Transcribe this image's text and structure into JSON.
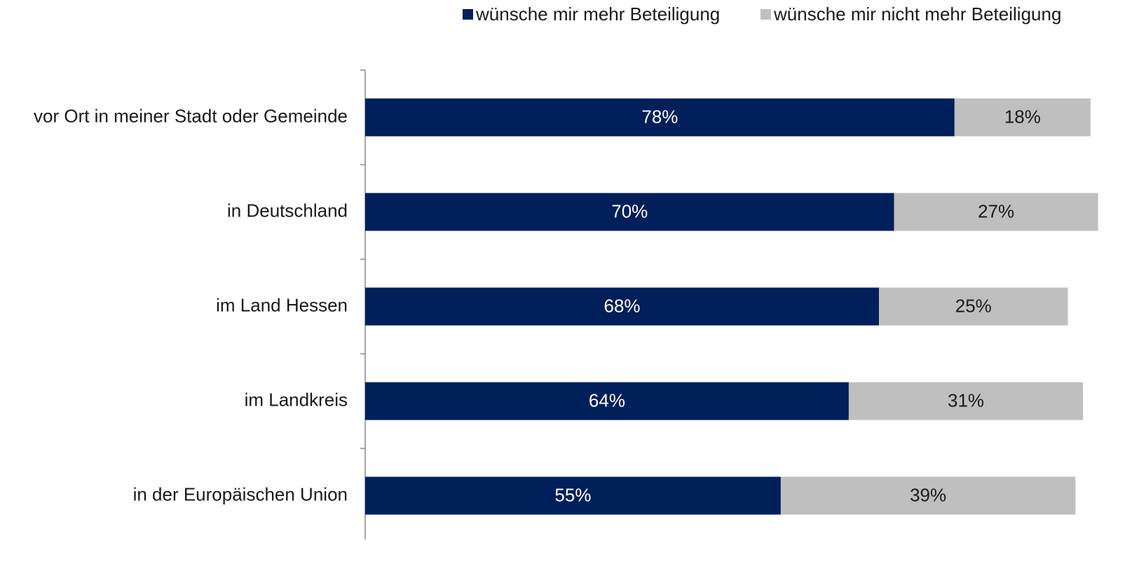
{
  "chart_data": {
    "type": "stacked_bar_horizontal",
    "categories": [
      "vor Ort in meiner Stadt oder Gemeinde",
      "in Deutschland",
      "im Land Hessen",
      "im Landkreis",
      "in der Europäischen Union"
    ],
    "series": [
      {
        "name": "wünsche mir mehr Beteiligung",
        "color": "#001f5b",
        "values": [
          78,
          70,
          68,
          64,
          55
        ],
        "value_labels": [
          "78%",
          "70%",
          "68%",
          "64%",
          "55%"
        ],
        "label_color": "#ffffff"
      },
      {
        "name": "wünsche mir nicht mehr Beteiligung",
        "color": "#bfbfbf",
        "values": [
          18,
          27,
          25,
          31,
          39
        ],
        "value_labels": [
          "18%",
          "27%",
          "25%",
          "31%",
          "39%"
        ],
        "label_color": "#1a1a1a"
      }
    ],
    "legend": "top-right"
  }
}
